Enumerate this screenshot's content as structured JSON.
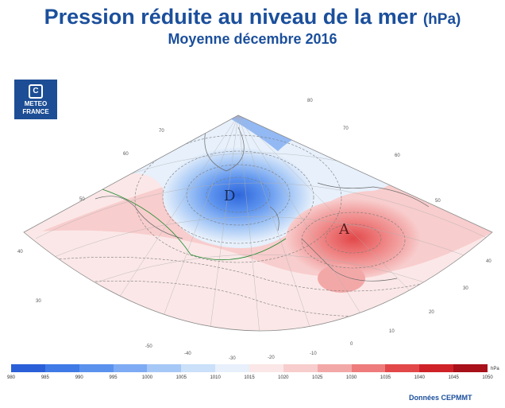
{
  "title": "Pression réduite au niveau de la mer",
  "title_unit": "(hPa)",
  "subtitle": "Moyenne décembre 2016",
  "logo": {
    "line1": "METEO",
    "line2": "FRANCE",
    "icon": "meteo-france-logo-icon"
  },
  "map": {
    "low_label": "D",
    "high_label": "A",
    "longitude_labels": [
      "-50",
      "-40",
      "-30",
      "-20",
      "-10",
      "0",
      "10",
      "20",
      "30",
      "40",
      "50",
      "60",
      "70",
      "80"
    ],
    "latitude_labels": [
      "30",
      "40",
      "50",
      "60",
      "70"
    ]
  },
  "colorbar": {
    "unit": "hPa",
    "ticks": [
      "980",
      "985",
      "990",
      "995",
      "1000",
      "1005",
      "1010",
      "1015",
      "1020",
      "1025",
      "1030",
      "1035",
      "1040",
      "1045",
      "1050"
    ],
    "colors": [
      "#2a5fd8",
      "#3f7ae6",
      "#5b92ee",
      "#7eabf3",
      "#a6c8f6",
      "#cbe0f9",
      "#e7f0fb",
      "#fbe7e7",
      "#f8cdcd",
      "#f3a8a8",
      "#ee7c7c",
      "#e2484a",
      "#cf2228",
      "#a8101a"
    ]
  },
  "source": "Données CEPMMT"
}
